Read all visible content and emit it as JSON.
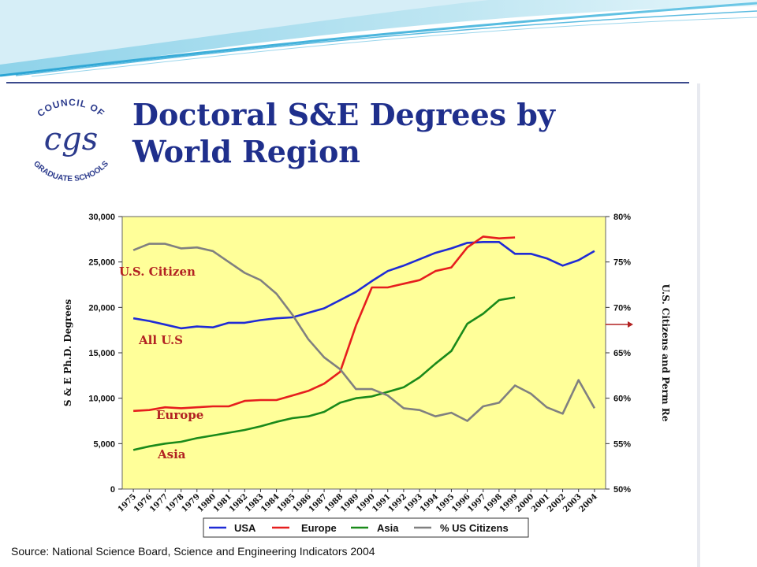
{
  "slide": {
    "title_line1": "Doctoral S&E Degrees by",
    "title_line2": "World Region",
    "source": "Source: National Science Board, Science and Engineering Indicators 2004"
  },
  "logo": {
    "arc_text_top": "COUNCIL OF",
    "arc_text_bottom": "GRADUATE SCHOOLS",
    "monogram": "cgs",
    "color": "#2b3a8c"
  },
  "colors": {
    "title": "#1f2f8c",
    "plot_background": "#ffff99",
    "usa": "#1f2bd6",
    "europe": "#e61e1e",
    "asia": "#1a8a1a",
    "citizens": "#808080",
    "annotation": "#b22222"
  },
  "chart_data": {
    "type": "line",
    "x": [
      1975,
      1976,
      1977,
      1978,
      1979,
      1980,
      1981,
      1982,
      1983,
      1984,
      1985,
      1986,
      1987,
      1988,
      1989,
      1990,
      1991,
      1992,
      1993,
      1994,
      1995,
      1996,
      1997,
      1998,
      1999,
      2000,
      2001,
      2002,
      2003,
      2004
    ],
    "y_left_label": "S & E Ph.D. Degrees",
    "y_left_ticks": [
      "0",
      "5,000",
      "10,000",
      "15,000",
      "20,000",
      "25,000",
      "30,000"
    ],
    "ylim_left": [
      0,
      30000
    ],
    "y_right_label": "U.S. Citizens and Perm Re",
    "y_right_ticks": [
      "50%",
      "55%",
      "60%",
      "65%",
      "70%",
      "75%",
      "80%"
    ],
    "ylim_right": [
      50,
      80
    ],
    "grid": false,
    "legend_position": "bottom",
    "series": [
      {
        "name": "USA",
        "axis": "left",
        "color": "#1f2bd6",
        "values": [
          18800,
          18500,
          18100,
          17700,
          17900,
          17800,
          18300,
          18300,
          18600,
          18800,
          18900,
          19400,
          19900,
          20800,
          21700,
          22900,
          24000,
          24600,
          25300,
          26000,
          26500,
          27100,
          27200,
          27200,
          25900,
          25900,
          25400,
          24600,
          25200,
          26200
        ]
      },
      {
        "name": "Europe",
        "axis": "left",
        "color": "#e61e1e",
        "values": [
          8600,
          8700,
          9000,
          8900,
          9000,
          9100,
          9100,
          9700,
          9800,
          9800,
          10300,
          10800,
          11600,
          12900,
          18000,
          22200,
          22200,
          22600,
          23000,
          24000,
          24400,
          26600,
          27800,
          27600,
          27700,
          null,
          null,
          null,
          null,
          null
        ]
      },
      {
        "name": "Asia",
        "axis": "left",
        "color": "#1a8a1a",
        "values": [
          4300,
          4700,
          5000,
          5200,
          5600,
          5900,
          6200,
          6500,
          6900,
          7400,
          7800,
          8000,
          8500,
          9500,
          10000,
          10200,
          10700,
          11200,
          12300,
          13800,
          15200,
          18200,
          19300,
          20800,
          21100,
          null,
          null,
          null,
          null,
          null
        ]
      },
      {
        "name": "% US Citizens",
        "axis": "right",
        "color": "#808080",
        "values": [
          76.3,
          77.0,
          77.0,
          76.5,
          76.6,
          76.2,
          75.0,
          73.8,
          73.0,
          71.5,
          69.2,
          66.5,
          64.5,
          63.2,
          61.0,
          61.0,
          60.3,
          58.9,
          58.7,
          58.0,
          58.4,
          57.5,
          59.1,
          59.5,
          61.4,
          60.5,
          59.0,
          58.3,
          62.0,
          58.9
        ]
      }
    ],
    "annotations": [
      {
        "text": "U.S. Citizen",
        "color": "#b22222"
      },
      {
        "text": "All U.S",
        "color": "#b22222"
      },
      {
        "text": "Europe",
        "color": "#b22222"
      },
      {
        "text": "Asia",
        "color": "#b22222"
      }
    ]
  }
}
